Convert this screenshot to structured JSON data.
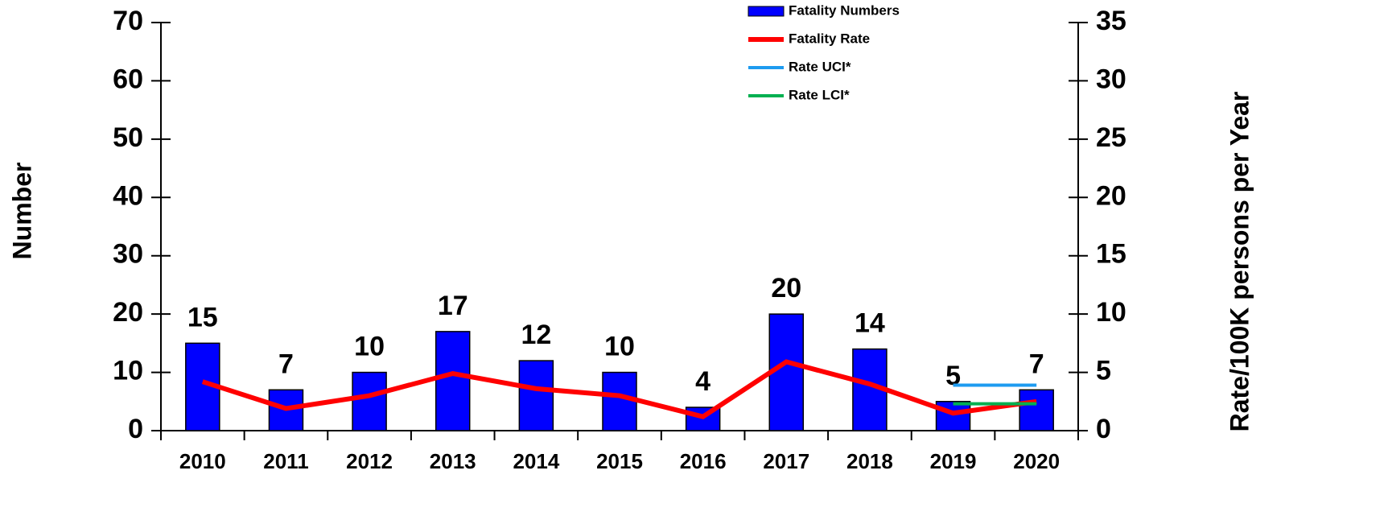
{
  "chart_data": {
    "type": "bar_line",
    "categories": [
      "2010",
      "2011",
      "2012",
      "2013",
      "2014",
      "2015",
      "2016",
      "2017",
      "2018",
      "2019",
      "2020"
    ],
    "series": [
      {
        "name": "Fatality Numbers",
        "color": "#0000ff",
        "type": "bar",
        "values": [
          15,
          7,
          10,
          17,
          12,
          10,
          4,
          20,
          14,
          5,
          7
        ]
      },
      {
        "name": "Fatality Rate",
        "color": "#ff0000",
        "type": "line",
        "axis": "y2",
        "values": [
          4.2,
          1.9,
          3.0,
          4.9,
          3.6,
          3.0,
          1.2,
          5.9,
          4.0,
          1.5,
          2.5
        ]
      },
      {
        "name": "Rate UCI*",
        "color": "#1e9bf0",
        "type": "line",
        "axis": "y2",
        "values": [
          null,
          null,
          null,
          null,
          null,
          null,
          null,
          null,
          null,
          3.9,
          3.9
        ]
      },
      {
        "name": "Rate LCI*",
        "color": "#00b050",
        "type": "line",
        "axis": "y2",
        "values": [
          null,
          null,
          null,
          null,
          null,
          null,
          null,
          null,
          null,
          2.3,
          2.3
        ]
      }
    ],
    "ylabel": "Number",
    "y2label": "Rate/100K persons per Year",
    "ylim": [
      0,
      70
    ],
    "yticks": [
      0,
      10,
      20,
      30,
      40,
      50,
      60,
      70
    ],
    "y2lim": [
      0,
      35
    ],
    "y2ticks": [
      0,
      5,
      10,
      15,
      20,
      25,
      30,
      35
    ],
    "legend": "top"
  }
}
